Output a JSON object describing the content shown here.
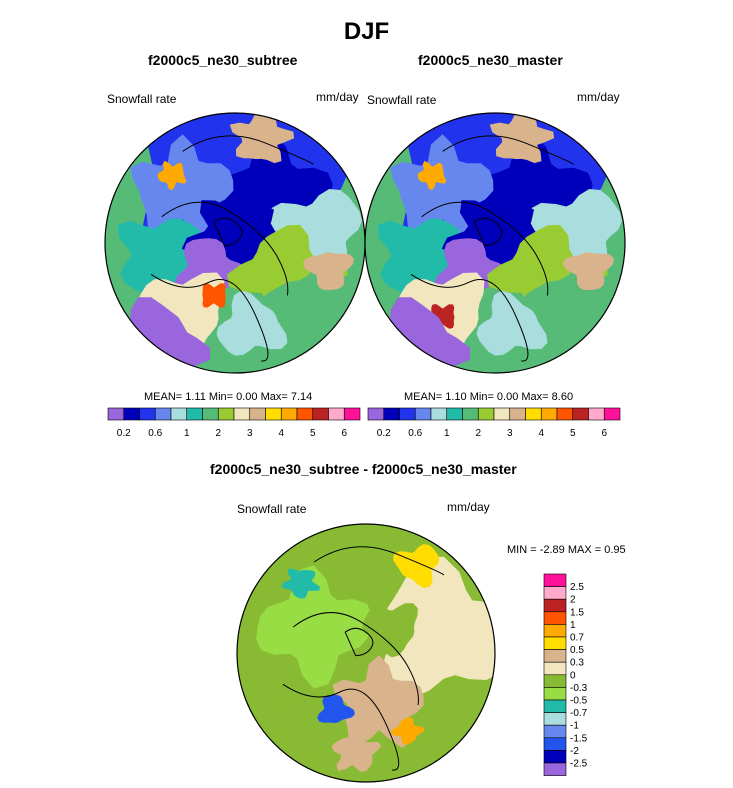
{
  "figure": {
    "title": "DJF",
    "panels": [
      {
        "title": "f2000c5_ne30_subtree",
        "left_label": "Snowfall rate",
        "right_label": "mm/day",
        "stats": "MEAN=   1.11  Min=   0.00  Max=   7.14"
      },
      {
        "title": "f2000c5_ne30_master",
        "left_label": "Snowfall rate",
        "right_label": "mm/day",
        "stats": "MEAN=   1.10  Min=   0.00  Max=   8.60"
      },
      {
        "title": "f2000c5_ne30_subtree - f2000c5_ne30_master",
        "left_label": "Snowfall rate",
        "right_label": "mm/day",
        "stats": "MIN =  -2.89 MAX =    0.95"
      }
    ]
  },
  "chart_data": [
    {
      "type": "heatmap",
      "projection": "north-polar-stereographic",
      "title": "f2000c5_ne30_subtree",
      "variable": "Snowfall rate",
      "units": "mm/day",
      "mean": 1.11,
      "min": 0.0,
      "max": 7.14,
      "colorbar": {
        "orientation": "horizontal",
        "levels": [
          0.2,
          0.4,
          0.6,
          0.8,
          1,
          1.5,
          2,
          2.5,
          3,
          3.5,
          4,
          4.5,
          5,
          5.5,
          6
        ],
        "tick_labels": [
          "0.2",
          "0.6",
          "1",
          "2",
          "3",
          "4",
          "5",
          "6"
        ],
        "colors": [
          "#9966dd",
          "#0000bb",
          "#2233ee",
          "#6688ee",
          "#aadddd",
          "#22bbaa",
          "#55bb77",
          "#99cc33",
          "#f2e6bf",
          "#d9b38c",
          "#ffdd00",
          "#ffaa00",
          "#ff5500",
          "#bb2222",
          "#ffaacc",
          "#ff1199"
        ]
      }
    },
    {
      "type": "heatmap",
      "projection": "north-polar-stereographic",
      "title": "f2000c5_ne30_master",
      "variable": "Snowfall rate",
      "units": "mm/day",
      "mean": 1.1,
      "min": 0.0,
      "max": 8.6,
      "colorbar": {
        "orientation": "horizontal",
        "levels": [
          0.2,
          0.4,
          0.6,
          0.8,
          1,
          1.5,
          2,
          2.5,
          3,
          3.5,
          4,
          4.5,
          5,
          5.5,
          6
        ],
        "tick_labels": [
          "0.2",
          "0.6",
          "1",
          "2",
          "3",
          "4",
          "5",
          "6"
        ],
        "colors": [
          "#9966dd",
          "#0000bb",
          "#2233ee",
          "#6688ee",
          "#aadddd",
          "#22bbaa",
          "#55bb77",
          "#99cc33",
          "#f2e6bf",
          "#d9b38c",
          "#ffdd00",
          "#ffaa00",
          "#ff5500",
          "#bb2222",
          "#ffaacc",
          "#ff1199"
        ]
      }
    },
    {
      "type": "heatmap",
      "projection": "north-polar-stereographic",
      "title": "f2000c5_ne30_subtree - f2000c5_ne30_master",
      "variable": "Snowfall rate",
      "units": "mm/day",
      "min": -2.89,
      "max": 0.95,
      "colorbar": {
        "orientation": "vertical",
        "tick_labels": [
          "2.5",
          "2",
          "1.5",
          "1",
          "0.7",
          "0.5",
          "0.3",
          "0",
          "-0.3",
          "-0.5",
          "-0.7",
          "-1",
          "-1.5",
          "-2",
          "-2.5"
        ],
        "colors": [
          "#ff1199",
          "#ffaacc",
          "#bb2222",
          "#ff5500",
          "#ffaa00",
          "#ffdd00",
          "#d9b38c",
          "#f2e6bf",
          "#88bb33",
          "#99dd44",
          "#22bbaa",
          "#aadddd",
          "#6688ee",
          "#2255ee",
          "#0000bb",
          "#9966dd"
        ]
      }
    }
  ]
}
